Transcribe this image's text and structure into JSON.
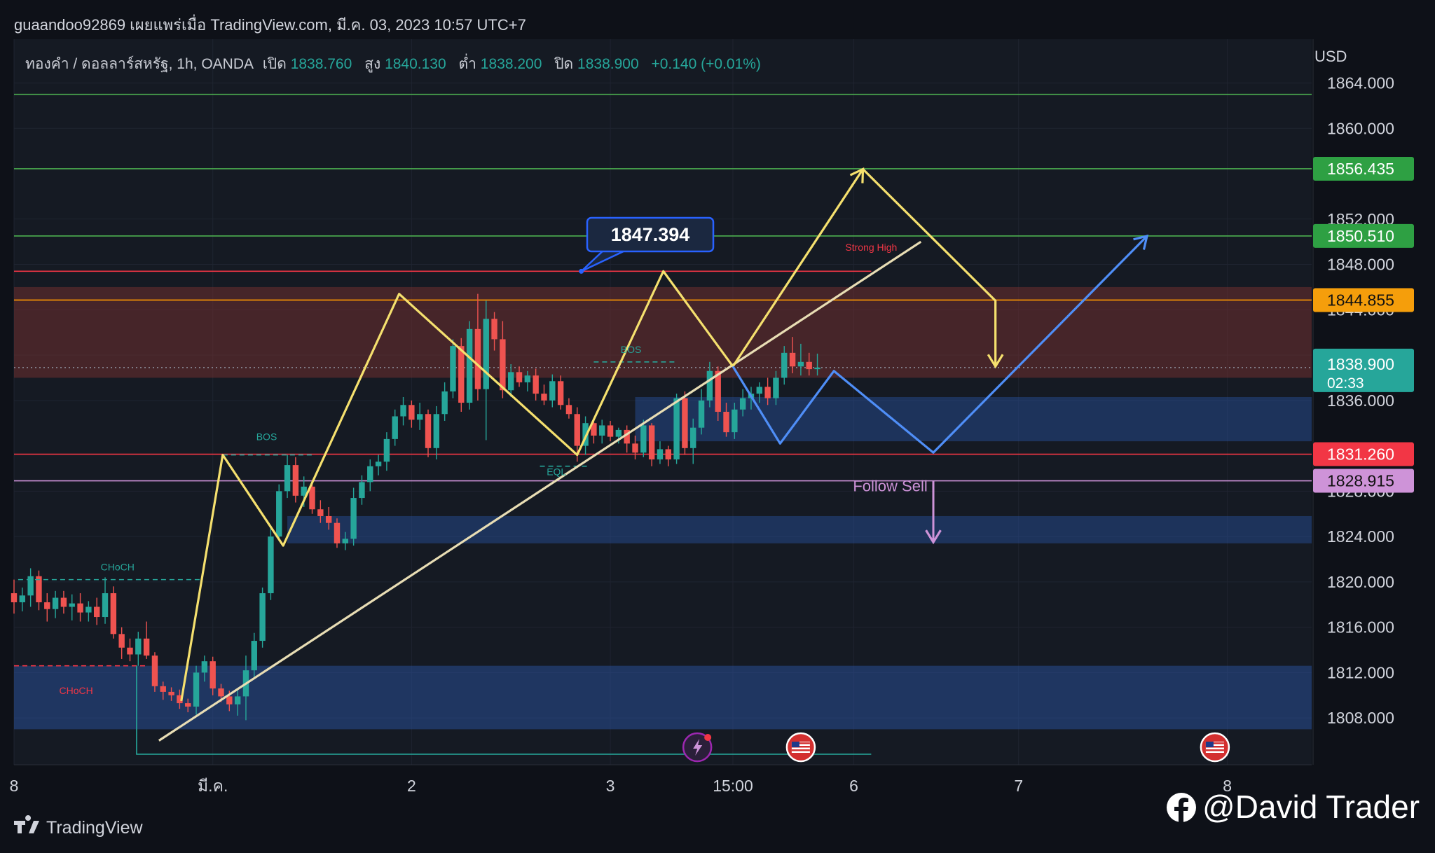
{
  "header": {
    "publish_line": "guaandoo92869 เผยแพร่เมื่อ TradingView.com, มี.ค. 03, 2023 10:57 UTC+7",
    "instrument": "ทองคำ / ดอลลาร์สหรัฐ, 1h, OANDA",
    "open_label": "เปิด",
    "open_value": "1838.760",
    "high_label": "สูง",
    "high_value": "1840.130",
    "low_label": "ต่ำ",
    "low_value": "1838.200",
    "close_label": "ปิด",
    "close_value": "1838.900",
    "change": "+0.140 (+0.01%)"
  },
  "chart_data": {
    "type": "candlestick",
    "currency": "USD",
    "y_axis_ticks": [
      "1864.000",
      "1860.000",
      "1852.000",
      "1848.000",
      "1844.000",
      "1840.000",
      "1836.000",
      "1828.000",
      "1824.000",
      "1820.000",
      "1816.000",
      "1812.000",
      "1808.000"
    ],
    "ylim": [
      1804.5,
      1866
    ],
    "x_axis_ticks": [
      {
        "label": "8",
        "x": 0
      },
      {
        "label": "มี.ค.",
        "x": 24
      },
      {
        "label": "2",
        "x": 48
      },
      {
        "label": "3",
        "x": 72
      },
      {
        "label": "15:00",
        "x": 86.8
      },
      {
        "label": "6",
        "x": 101.4
      },
      {
        "label": "7",
        "x": 121.3
      },
      {
        "label": "8",
        "x": 146.5
      }
    ],
    "price_badges": [
      {
        "label": "1856.435",
        "value": 1856.435,
        "color": "#2ea043",
        "text_color": "#ffffff"
      },
      {
        "label": "1850.510",
        "value": 1850.51,
        "color": "#2ea043",
        "text_color": "#ffffff"
      },
      {
        "label": "1844.855",
        "value": 1844.855,
        "color": "#f59e0b",
        "text_color": "#111111"
      },
      {
        "label": "1831.260",
        "value": 1831.26,
        "color": "#f23645",
        "text_color": "#ffffff"
      },
      {
        "label": "1828.915",
        "value": 1828.915,
        "color": "#ce93d8",
        "text_color": "#111111"
      }
    ],
    "last_price": {
      "label": "1838.900",
      "countdown": "02:33",
      "value": 1838.9,
      "color": "#26a69a"
    },
    "horizontal_lines": [
      {
        "value": 1863.0,
        "color": "#4caf50"
      },
      {
        "value": 1856.435,
        "color": "#4caf50"
      },
      {
        "value": 1850.51,
        "color": "#4caf50"
      },
      {
        "value": 1847.394,
        "color": "#f23645"
      },
      {
        "value": 1844.855,
        "color": "#ff9800"
      },
      {
        "value": 1831.26,
        "color": "#f23645"
      },
      {
        "value": 1828.915,
        "color": "#ce93d8"
      }
    ],
    "zones": [
      {
        "x1": 0,
        "x2": 158,
        "y_top": 1846.0,
        "y_bottom": 1838.0,
        "color": "rgba(120,48,48,0.5)"
      },
      {
        "x1": 75,
        "x2": 158,
        "y_top": 1836.3,
        "y_bottom": 1832.4,
        "color": "rgba(41,82,160,0.45)"
      },
      {
        "x1": 33,
        "x2": 158,
        "y_top": 1825.8,
        "y_bottom": 1823.4,
        "color": "rgba(41,82,160,0.45)"
      },
      {
        "x1": 0,
        "x2": 158,
        "y_top": 1812.6,
        "y_bottom": 1807.0,
        "color": "rgba(41,82,160,0.5)"
      }
    ],
    "callout": {
      "label": "1847.394",
      "value": 1847.394,
      "x": 68.5
    },
    "annotations": [
      {
        "text": "Strong High",
        "x": 103.5,
        "y": 1849.2,
        "color": "#f23645"
      },
      {
        "text": "BOS",
        "x": 30.5,
        "y": 1832.5,
        "color": "#26a69a"
      },
      {
        "text": "BOS",
        "x": 74.5,
        "y": 1840.2,
        "color": "#26a69a"
      },
      {
        "text": "EQL",
        "x": 65.5,
        "y": 1829.4,
        "color": "#26a69a"
      },
      {
        "text": "CHoCH",
        "x": 12.5,
        "y": 1821.0,
        "color": "#26a69a"
      },
      {
        "text": "CHoCH",
        "x": 7.5,
        "y": 1810.1,
        "color": "#f23645"
      },
      {
        "text": "Follow Sell",
        "x": 105.8,
        "y": 1828.0,
        "color": "#ce93d8"
      }
    ],
    "candles": [
      {
        "o": 1819.0,
        "h": 1820.2,
        "l": 1817.2,
        "c": 1818.2
      },
      {
        "o": 1818.2,
        "h": 1819.5,
        "l": 1817.4,
        "c": 1818.8
      },
      {
        "o": 1818.8,
        "h": 1821.2,
        "l": 1817.8,
        "c": 1820.5
      },
      {
        "o": 1820.5,
        "h": 1821.0,
        "l": 1817.5,
        "c": 1818.2
      },
      {
        "o": 1818.2,
        "h": 1819.0,
        "l": 1816.5,
        "c": 1817.6
      },
      {
        "o": 1817.6,
        "h": 1819.2,
        "l": 1816.8,
        "c": 1818.6
      },
      {
        "o": 1818.6,
        "h": 1819.2,
        "l": 1817.2,
        "c": 1817.8
      },
      {
        "o": 1817.8,
        "h": 1818.9,
        "l": 1816.6,
        "c": 1818.1
      },
      {
        "o": 1818.1,
        "h": 1819.0,
        "l": 1816.5,
        "c": 1817.3
      },
      {
        "o": 1817.3,
        "h": 1818.3,
        "l": 1816.5,
        "c": 1817.8
      },
      {
        "o": 1817.8,
        "h": 1818.6,
        "l": 1816.2,
        "c": 1816.9
      },
      {
        "o": 1816.9,
        "h": 1820.4,
        "l": 1816.3,
        "c": 1819.0
      },
      {
        "o": 1819.0,
        "h": 1819.6,
        "l": 1815.0,
        "c": 1815.4
      },
      {
        "o": 1815.4,
        "h": 1816.0,
        "l": 1813.2,
        "c": 1814.2
      },
      {
        "o": 1814.2,
        "h": 1815.0,
        "l": 1813.0,
        "c": 1813.6
      },
      {
        "o": 1813.6,
        "h": 1815.6,
        "l": 1812.6,
        "c": 1815.0
      },
      {
        "o": 1815.0,
        "h": 1816.5,
        "l": 1813.2,
        "c": 1813.5
      },
      {
        "o": 1813.5,
        "h": 1813.8,
        "l": 1810.3,
        "c": 1810.8
      },
      {
        "o": 1810.8,
        "h": 1811.2,
        "l": 1809.6,
        "c": 1810.3
      },
      {
        "o": 1810.3,
        "h": 1810.7,
        "l": 1809.5,
        "c": 1810.0
      },
      {
        "o": 1810.0,
        "h": 1810.5,
        "l": 1808.8,
        "c": 1809.3
      },
      {
        "o": 1809.3,
        "h": 1809.7,
        "l": 1808.5,
        "c": 1809.0
      },
      {
        "o": 1809.0,
        "h": 1812.6,
        "l": 1808.3,
        "c": 1812.0
      },
      {
        "o": 1812.0,
        "h": 1813.5,
        "l": 1811.2,
        "c": 1813.0
      },
      {
        "o": 1813.0,
        "h": 1813.4,
        "l": 1810.0,
        "c": 1810.6
      },
      {
        "o": 1810.6,
        "h": 1811.0,
        "l": 1809.4,
        "c": 1809.9
      },
      {
        "o": 1809.9,
        "h": 1810.4,
        "l": 1808.6,
        "c": 1809.2
      },
      {
        "o": 1809.2,
        "h": 1810.6,
        "l": 1808.2,
        "c": 1809.9
      },
      {
        "o": 1809.9,
        "h": 1813.5,
        "l": 1807.8,
        "c": 1812.2
      },
      {
        "o": 1812.2,
        "h": 1815.5,
        "l": 1811.6,
        "c": 1814.8
      },
      {
        "o": 1814.8,
        "h": 1819.5,
        "l": 1814.2,
        "c": 1819.0
      },
      {
        "o": 1819.0,
        "h": 1825.0,
        "l": 1818.4,
        "c": 1824.0
      },
      {
        "o": 1824.0,
        "h": 1828.6,
        "l": 1823.6,
        "c": 1828.0
      },
      {
        "o": 1828.0,
        "h": 1831.2,
        "l": 1827.4,
        "c": 1830.3
      },
      {
        "o": 1830.3,
        "h": 1831.0,
        "l": 1827.0,
        "c": 1827.6
      },
      {
        "o": 1827.6,
        "h": 1829.3,
        "l": 1826.6,
        "c": 1828.4
      },
      {
        "o": 1828.4,
        "h": 1829.0,
        "l": 1826.0,
        "c": 1826.4
      },
      {
        "o": 1826.4,
        "h": 1827.2,
        "l": 1825.2,
        "c": 1825.8
      },
      {
        "o": 1825.8,
        "h": 1826.6,
        "l": 1824.6,
        "c": 1825.2
      },
      {
        "o": 1825.2,
        "h": 1825.6,
        "l": 1823.0,
        "c": 1823.4
      },
      {
        "o": 1823.4,
        "h": 1824.4,
        "l": 1822.8,
        "c": 1823.8
      },
      {
        "o": 1823.8,
        "h": 1828.3,
        "l": 1823.2,
        "c": 1827.4
      },
      {
        "o": 1827.4,
        "h": 1829.4,
        "l": 1826.8,
        "c": 1828.8
      },
      {
        "o": 1828.8,
        "h": 1830.8,
        "l": 1828.0,
        "c": 1830.2
      },
      {
        "o": 1830.2,
        "h": 1831.2,
        "l": 1829.4,
        "c": 1830.6
      },
      {
        "o": 1830.6,
        "h": 1833.2,
        "l": 1829.8,
        "c": 1832.6
      },
      {
        "o": 1832.6,
        "h": 1835.2,
        "l": 1832.0,
        "c": 1834.6
      },
      {
        "o": 1834.6,
        "h": 1836.3,
        "l": 1833.8,
        "c": 1835.6
      },
      {
        "o": 1835.6,
        "h": 1836.0,
        "l": 1833.6,
        "c": 1834.3
      },
      {
        "o": 1834.3,
        "h": 1835.8,
        "l": 1833.4,
        "c": 1834.8
      },
      {
        "o": 1834.8,
        "h": 1835.2,
        "l": 1831.0,
        "c": 1831.8
      },
      {
        "o": 1831.8,
        "h": 1835.5,
        "l": 1830.8,
        "c": 1834.8
      },
      {
        "o": 1834.8,
        "h": 1837.6,
        "l": 1834.2,
        "c": 1836.8
      },
      {
        "o": 1836.8,
        "h": 1841.4,
        "l": 1836.2,
        "c": 1840.8
      },
      {
        "o": 1840.8,
        "h": 1841.5,
        "l": 1835.0,
        "c": 1835.8
      },
      {
        "o": 1835.8,
        "h": 1843.0,
        "l": 1835.2,
        "c": 1842.3
      },
      {
        "o": 1842.3,
        "h": 1845.4,
        "l": 1836.0,
        "c": 1837.0
      },
      {
        "o": 1837.0,
        "h": 1844.8,
        "l": 1832.5,
        "c": 1843.2
      },
      {
        "o": 1843.2,
        "h": 1843.8,
        "l": 1840.4,
        "c": 1841.4
      },
      {
        "o": 1841.4,
        "h": 1843.0,
        "l": 1836.2,
        "c": 1836.9
      },
      {
        "o": 1836.9,
        "h": 1839.2,
        "l": 1836.3,
        "c": 1838.5
      },
      {
        "o": 1838.5,
        "h": 1839.0,
        "l": 1837.2,
        "c": 1837.6
      },
      {
        "o": 1837.6,
        "h": 1838.6,
        "l": 1836.8,
        "c": 1838.2
      },
      {
        "o": 1838.2,
        "h": 1838.8,
        "l": 1836.0,
        "c": 1836.6
      },
      {
        "o": 1836.6,
        "h": 1837.4,
        "l": 1835.6,
        "c": 1836.0
      },
      {
        "o": 1836.0,
        "h": 1838.3,
        "l": 1835.4,
        "c": 1837.7
      },
      {
        "o": 1837.7,
        "h": 1838.2,
        "l": 1835.2,
        "c": 1835.6
      },
      {
        "o": 1835.6,
        "h": 1836.2,
        "l": 1834.4,
        "c": 1834.8
      },
      {
        "o": 1834.8,
        "h": 1835.4,
        "l": 1830.6,
        "c": 1832.0
      },
      {
        "o": 1832.0,
        "h": 1834.6,
        "l": 1831.2,
        "c": 1834.0
      },
      {
        "o": 1834.0,
        "h": 1834.4,
        "l": 1832.2,
        "c": 1832.9
      },
      {
        "o": 1832.9,
        "h": 1834.3,
        "l": 1832.2,
        "c": 1833.8
      },
      {
        "o": 1833.8,
        "h": 1834.2,
        "l": 1832.4,
        "c": 1832.8
      },
      {
        "o": 1832.8,
        "h": 1833.6,
        "l": 1832.2,
        "c": 1833.4
      },
      {
        "o": 1833.4,
        "h": 1833.8,
        "l": 1831.4,
        "c": 1832.2
      },
      {
        "o": 1832.2,
        "h": 1832.9,
        "l": 1830.8,
        "c": 1831.4
      },
      {
        "o": 1831.4,
        "h": 1834.3,
        "l": 1831.0,
        "c": 1833.8
      },
      {
        "o": 1833.8,
        "h": 1834.0,
        "l": 1830.2,
        "c": 1830.8
      },
      {
        "o": 1830.8,
        "h": 1832.4,
        "l": 1830.4,
        "c": 1831.7
      },
      {
        "o": 1831.7,
        "h": 1832.0,
        "l": 1830.2,
        "c": 1830.8
      },
      {
        "o": 1830.8,
        "h": 1836.6,
        "l": 1830.4,
        "c": 1836.2
      },
      {
        "o": 1836.2,
        "h": 1836.8,
        "l": 1831.2,
        "c": 1831.8
      },
      {
        "o": 1831.8,
        "h": 1834.4,
        "l": 1830.4,
        "c": 1833.6
      },
      {
        "o": 1833.6,
        "h": 1837.0,
        "l": 1833.0,
        "c": 1836.0
      },
      {
        "o": 1836.0,
        "h": 1839.4,
        "l": 1835.4,
        "c": 1838.6
      },
      {
        "o": 1838.6,
        "h": 1839.0,
        "l": 1834.2,
        "c": 1835.0
      },
      {
        "o": 1835.0,
        "h": 1835.8,
        "l": 1832.8,
        "c": 1833.2
      },
      {
        "o": 1833.2,
        "h": 1835.8,
        "l": 1832.6,
        "c": 1835.2
      },
      {
        "o": 1835.2,
        "h": 1837.0,
        "l": 1834.6,
        "c": 1836.2
      },
      {
        "o": 1836.2,
        "h": 1837.2,
        "l": 1835.2,
        "c": 1836.6
      },
      {
        "o": 1836.6,
        "h": 1837.6,
        "l": 1835.8,
        "c": 1837.2
      },
      {
        "o": 1837.2,
        "h": 1838.0,
        "l": 1835.6,
        "c": 1836.2
      },
      {
        "o": 1836.2,
        "h": 1838.6,
        "l": 1835.6,
        "c": 1838.0
      },
      {
        "o": 1838.0,
        "h": 1840.8,
        "l": 1837.4,
        "c": 1840.2
      },
      {
        "o": 1840.2,
        "h": 1841.6,
        "l": 1838.4,
        "c": 1839.0
      },
      {
        "o": 1839.0,
        "h": 1841.0,
        "l": 1838.2,
        "c": 1839.4
      },
      {
        "o": 1839.4,
        "h": 1840.2,
        "l": 1838.2,
        "c": 1838.76
      },
      {
        "o": 1838.76,
        "h": 1840.13,
        "l": 1838.2,
        "c": 1838.9
      }
    ]
  },
  "drawings": {
    "zigzag_yellow": [
      [
        20.2,
        1809.5
      ],
      [
        25.2,
        1831.2
      ],
      [
        32.5,
        1823.2
      ],
      [
        46.5,
        1845.4
      ],
      [
        68.0,
        1831.2
      ],
      [
        78.4,
        1847.4
      ],
      [
        86.8,
        1839.0
      ],
      [
        102.5,
        1856.4
      ],
      [
        118.5,
        1844.8
      ],
      [
        118.5,
        1839.0
      ]
    ],
    "forecast_blue": [
      [
        86.8,
        1839.0
      ],
      [
        92.5,
        1832.2
      ],
      [
        99.0,
        1838.6
      ],
      [
        111.0,
        1831.4
      ],
      [
        136.8,
        1850.5
      ]
    ],
    "trendline": [
      [
        17.5,
        1806.0
      ],
      [
        109.5,
        1850.0
      ]
    ],
    "follow_sell_arrow": [
      [
        111.0,
        1828.9
      ],
      [
        111.0,
        1823.5
      ]
    ],
    "bos_dashes": [
      {
        "x1": 25.2,
        "x2": 36,
        "y": 1831.2,
        "color": "#26a69a"
      },
      {
        "x1": 70,
        "x2": 80,
        "y": 1839.4,
        "color": "#26a69a"
      },
      {
        "x1": 63.5,
        "x2": 69.5,
        "y": 1830.2,
        "color": "#26a69a"
      },
      {
        "x1": 0.5,
        "x2": 22.5,
        "y": 1820.2,
        "color": "#26a69a"
      },
      {
        "x1": 0,
        "x2": 16,
        "y": 1812.6,
        "color": "#f23645"
      }
    ],
    "low_bracket": [
      [
        14.8,
        1812.6
      ],
      [
        14.8,
        1804.8
      ],
      [
        103.5,
        1804.8
      ]
    ]
  },
  "events": [
    {
      "icon": "lightning-icon",
      "x": 82.5
    },
    {
      "icon": "us-flag-icon",
      "x": 95.0
    },
    {
      "icon": "us-flag-icon",
      "x": 145.0
    }
  ],
  "watermark": {
    "tv_logo": "TradingView",
    "credit": "@David Trader"
  }
}
